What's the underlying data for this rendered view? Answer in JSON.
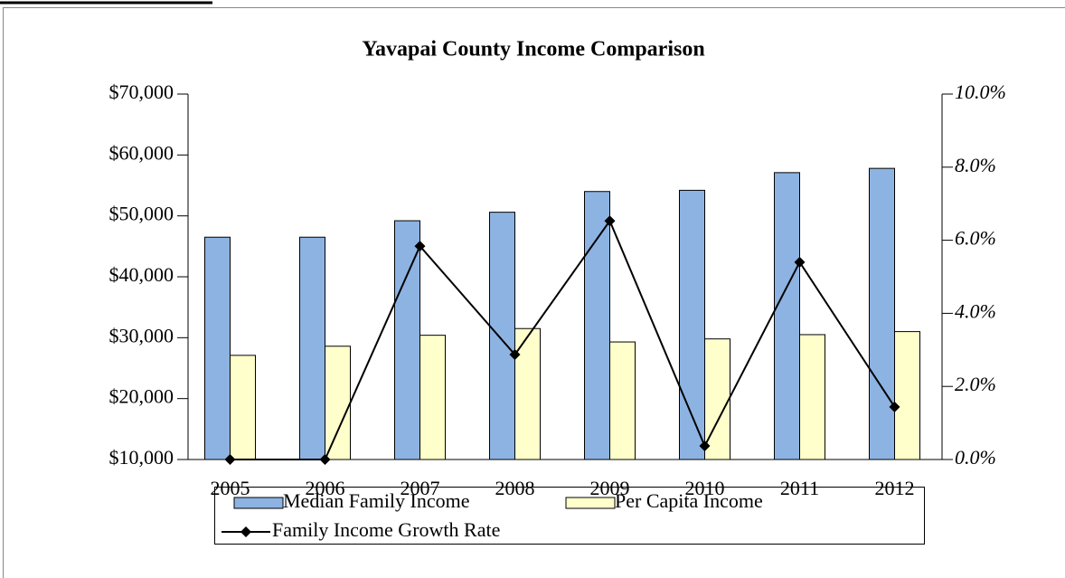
{
  "chart_data": {
    "type": "bar",
    "title": "Yavapai County Income Comparison",
    "categories": [
      "2005",
      "2006",
      "2007",
      "2008",
      "2009",
      "2010",
      "2011",
      "2012"
    ],
    "series": [
      {
        "name": "Median Family Income",
        "color": "#8db3e2",
        "values": [
          46500,
          46500,
          49200,
          50600,
          54000,
          54200,
          57100,
          57800
        ]
      },
      {
        "name": "Per Capita Income",
        "color": "#ffffcc",
        "values": [
          27100,
          28600,
          30400,
          31500,
          29300,
          29800,
          30500,
          31000
        ]
      },
      {
        "name": "Family Income Growth Rate",
        "type": "line",
        "color": "#000000",
        "axis": "y2",
        "values": [
          0,
          0,
          5.84,
          2.87,
          6.53,
          0.37,
          5.4,
          1.44
        ]
      }
    ],
    "ylim": [
      10000,
      70000
    ],
    "yticks": [
      {
        "value": 10000,
        "label": "$10,000"
      },
      {
        "value": 20000,
        "label": "$20,000"
      },
      {
        "value": 30000,
        "label": "$30,000"
      },
      {
        "value": 40000,
        "label": "$40,000"
      },
      {
        "value": 50000,
        "label": "$50,000"
      },
      {
        "value": 60000,
        "label": "$60,000"
      },
      {
        "value": 70000,
        "label": "$70,000"
      }
    ],
    "y2lim": [
      0,
      10
    ],
    "y2ticks": [
      {
        "value": 0,
        "label": "0.0%"
      },
      {
        "value": 2,
        "label": "2.0%"
      },
      {
        "value": 4,
        "label": "4.0%"
      },
      {
        "value": 6,
        "label": "6.0%"
      },
      {
        "value": 8,
        "label": "8.0%"
      },
      {
        "value": 10,
        "label": "10.0%"
      }
    ],
    "legend": "bottom"
  }
}
